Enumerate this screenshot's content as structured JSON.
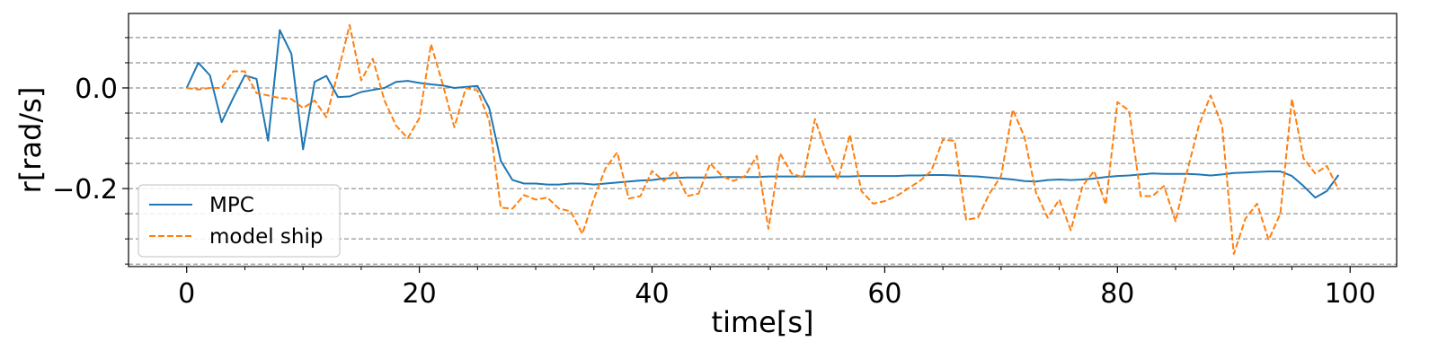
{
  "chart_data": {
    "type": "line",
    "xlabel": "time[s]",
    "ylabel": "r[rad/s]",
    "xlim": [
      -5,
      104
    ],
    "ylim": [
      -0.355,
      0.148
    ],
    "xticks": [
      0,
      20,
      40,
      60,
      80,
      100
    ],
    "xtick_labels": [
      "0",
      "20",
      "40",
      "60",
      "80",
      "100"
    ],
    "yticks": [
      0.0,
      -0.2
    ],
    "ytick_labels": [
      "0.0",
      "−0.2"
    ],
    "y_minor_ticks": [
      0.1,
      0.05,
      -0.05,
      -0.1,
      -0.15,
      -0.25,
      -0.3,
      -0.35
    ],
    "grid": "horizontal dashed at major and minor y ticks",
    "legend_position": "lower-left",
    "series": [
      {
        "name": "MPC",
        "color": "#1f77b4",
        "style": "solid",
        "x": [
          0,
          1,
          2,
          3,
          4,
          5,
          6,
          7,
          8,
          9,
          10,
          11,
          12,
          13,
          14,
          15,
          16,
          17,
          18,
          19,
          20,
          21,
          22,
          23,
          24,
          25,
          26,
          27,
          28,
          29,
          30,
          31,
          32,
          33,
          34,
          35,
          36,
          37,
          38,
          39,
          40,
          41,
          42,
          43,
          44,
          45,
          46,
          47,
          48,
          49,
          50,
          51,
          52,
          53,
          54,
          55,
          56,
          57,
          58,
          59,
          60,
          61,
          62,
          63,
          64,
          65,
          66,
          67,
          68,
          69,
          70,
          71,
          72,
          73,
          74,
          75,
          76,
          77,
          78,
          79,
          80,
          81,
          82,
          83,
          84,
          85,
          86,
          87,
          88,
          89,
          90,
          91,
          92,
          93,
          94,
          95,
          96,
          97,
          98,
          99
        ],
        "y": [
          0.0,
          0.05,
          0.025,
          -0.068,
          -0.02,
          0.025,
          0.018,
          -0.105,
          0.115,
          0.068,
          -0.122,
          0.012,
          0.024,
          -0.018,
          -0.017,
          -0.008,
          -0.004,
          0.0,
          0.012,
          0.014,
          0.01,
          0.007,
          0.005,
          0.0,
          0.002,
          0.004,
          -0.04,
          -0.145,
          -0.183,
          -0.19,
          -0.19,
          -0.192,
          -0.192,
          -0.19,
          -0.19,
          -0.192,
          -0.19,
          -0.188,
          -0.186,
          -0.184,
          -0.183,
          -0.18,
          -0.179,
          -0.178,
          -0.178,
          -0.178,
          -0.177,
          -0.177,
          -0.177,
          -0.177,
          -0.176,
          -0.176,
          -0.176,
          -0.176,
          -0.176,
          -0.176,
          -0.176,
          -0.176,
          -0.175,
          -0.175,
          -0.175,
          -0.175,
          -0.174,
          -0.174,
          -0.173,
          -0.173,
          -0.174,
          -0.175,
          -0.176,
          -0.178,
          -0.18,
          -0.182,
          -0.185,
          -0.186,
          -0.183,
          -0.182,
          -0.183,
          -0.182,
          -0.18,
          -0.177,
          -0.175,
          -0.174,
          -0.172,
          -0.17,
          -0.171,
          -0.171,
          -0.171,
          -0.172,
          -0.174,
          -0.172,
          -0.169,
          -0.168,
          -0.167,
          -0.166,
          -0.166,
          -0.175,
          -0.195,
          -0.218,
          -0.205,
          -0.173
        ]
      },
      {
        "name": "model ship",
        "color": "#ff7f0e",
        "style": "dashed",
        "x": [
          0,
          1,
          2,
          3,
          4,
          5,
          6,
          7,
          8,
          9,
          10,
          11,
          12,
          13,
          14,
          15,
          16,
          17,
          18,
          19,
          20,
          21,
          22,
          23,
          24,
          25,
          26,
          27,
          28,
          29,
          30,
          31,
          32,
          33,
          34,
          35,
          36,
          37,
          38,
          39,
          40,
          41,
          42,
          43,
          44,
          45,
          46,
          47,
          48,
          49,
          50,
          51,
          52,
          53,
          54,
          55,
          56,
          57,
          58,
          59,
          60,
          61,
          62,
          63,
          64,
          65,
          66,
          67,
          68,
          69,
          70,
          71,
          72,
          73,
          74,
          75,
          76,
          77,
          78,
          79,
          80,
          81,
          82,
          83,
          84,
          85,
          86,
          87,
          88,
          89,
          90,
          91,
          92,
          93,
          94,
          95,
          96,
          97,
          98,
          99
        ],
        "y": [
          0.0,
          -0.003,
          0.0,
          0.0,
          0.033,
          0.033,
          -0.01,
          -0.015,
          -0.02,
          -0.022,
          -0.04,
          -0.025,
          -0.058,
          0.03,
          0.125,
          0.015,
          0.058,
          -0.025,
          -0.075,
          -0.1,
          -0.06,
          0.087,
          0.008,
          -0.078,
          0.0,
          -0.005,
          -0.065,
          -0.238,
          -0.24,
          -0.213,
          -0.222,
          -0.218,
          -0.24,
          -0.245,
          -0.29,
          -0.22,
          -0.16,
          -0.128,
          -0.22,
          -0.215,
          -0.165,
          -0.185,
          -0.165,
          -0.215,
          -0.21,
          -0.15,
          -0.175,
          -0.185,
          -0.175,
          -0.135,
          -0.28,
          -0.13,
          -0.17,
          -0.178,
          -0.062,
          -0.13,
          -0.182,
          -0.093,
          -0.205,
          -0.23,
          -0.225,
          -0.215,
          -0.2,
          -0.185,
          -0.165,
          -0.103,
          -0.105,
          -0.262,
          -0.258,
          -0.21,
          -0.175,
          -0.043,
          -0.097,
          -0.208,
          -0.258,
          -0.222,
          -0.283,
          -0.195,
          -0.165,
          -0.232,
          -0.028,
          -0.045,
          -0.215,
          -0.215,
          -0.195,
          -0.265,
          -0.165,
          -0.075,
          -0.015,
          -0.075,
          -0.33,
          -0.26,
          -0.23,
          -0.302,
          -0.25,
          -0.022,
          -0.14,
          -0.17,
          -0.155,
          -0.202
        ]
      }
    ]
  }
}
